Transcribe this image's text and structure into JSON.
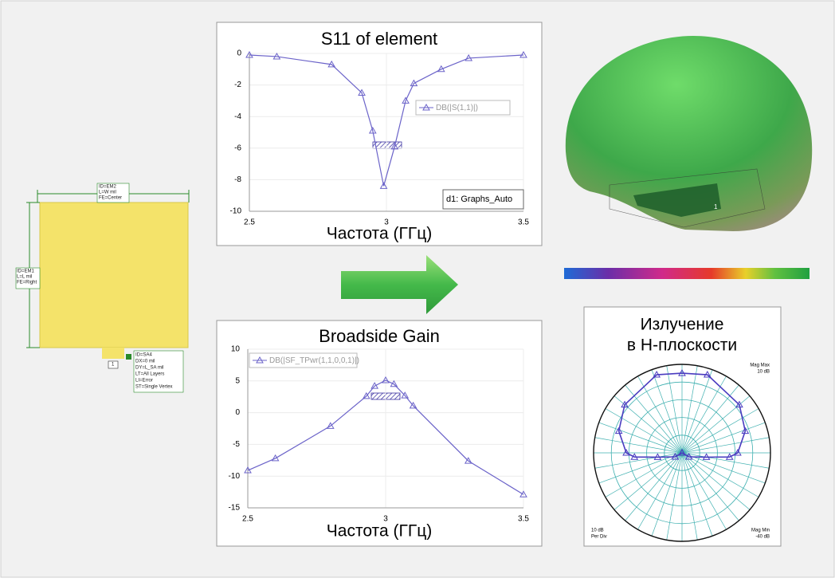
{
  "chart_data": [
    {
      "type": "line",
      "title": "S11 of element",
      "x_label": "Частота (ГГц)",
      "x": [
        2.5,
        2.6,
        2.8,
        2.91,
        2.95,
        2.99,
        3.03,
        3.07,
        3.1,
        3.2,
        3.3,
        3.5
      ],
      "series": [
        {
          "name": "DB(|S(1,1)|)",
          "color": "#6b63c9",
          "values": [
            -0.1,
            -0.2,
            -0.7,
            -2.5,
            -4.9,
            -8.4,
            -5.9,
            -3.0,
            -1.9,
            -1.0,
            -0.3,
            -0.1
          ]
        }
      ],
      "xlim": [
        2.5,
        3.5
      ],
      "ylim": [
        -10,
        0
      ],
      "xticks": [
        2.5,
        3,
        3.5
      ],
      "yticks": [
        0,
        -2,
        -4,
        -6,
        -8,
        -10
      ],
      "grid": true,
      "annotation": "d1: Graphs_Auto"
    },
    {
      "type": "line",
      "title": "Broadside Gain",
      "x_label": "Частота (ГГц)",
      "x": [
        2.5,
        2.6,
        2.8,
        2.93,
        2.96,
        3.0,
        3.03,
        3.07,
        3.1,
        3.3,
        3.5
      ],
      "series": [
        {
          "name": "DB(|SF_TPwr(1,1,0,0,1)|)",
          "color": "#6b63c9",
          "values": [
            -9.1,
            -7.2,
            -2.1,
            2.6,
            4.2,
            5.1,
            4.5,
            2.7,
            1.1,
            -7.6,
            -12.9
          ]
        }
      ],
      "xlim": [
        2.5,
        3.5
      ],
      "ylim": [
        -15,
        10
      ],
      "xticks": [
        2.5,
        3,
        3.5
      ],
      "yticks": [
        10,
        5,
        0,
        -5,
        -10,
        -15
      ],
      "grid": true
    },
    {
      "type": "polar",
      "title": [
        "Излучение",
        "в Н-плоскости"
      ],
      "theta": [
        -180,
        -120,
        -100,
        -95,
        -90,
        -71,
        -50,
        -18,
        0,
        18,
        50,
        71,
        90,
        95,
        100,
        120,
        180
      ],
      "series": [
        {
          "color": "#4a3cc0",
          "values": [
            -40,
            -35.5,
            -26,
            -13,
            -8.5,
            -2.2,
            2.3,
            6.4,
            5,
            6.4,
            2.3,
            -2.2,
            -8.5,
            -13,
            -26,
            -35.5,
            -40
          ]
        }
      ],
      "rlim": [
        -40,
        10
      ],
      "rticks": [
        -30,
        -20,
        -10,
        0
      ],
      "annotations": [
        "Mag Max",
        "10 dB",
        "10 dB",
        "Per Div",
        "Mag Min",
        "-40 dB"
      ]
    }
  ],
  "layout_labels": [
    "ID=EM2",
    "L=W mil",
    "FE=Center",
    "ID=EM1",
    "L=L mil",
    "FE=Right",
    "ID=SA4",
    "DX=0 mil",
    "DY=L_SA mil",
    "LT=All Layers",
    "LI=Error",
    "ST=Single Vertex",
    "1"
  ],
  "render_labels": [
    "1"
  ]
}
